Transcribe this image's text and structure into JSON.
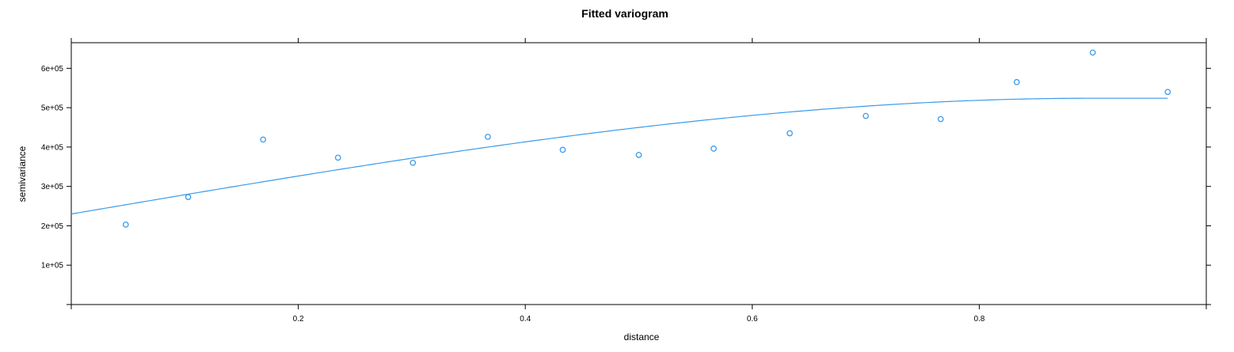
{
  "chart_data": {
    "type": "scatter",
    "title": "Fitted variogram",
    "xlabel": "distance",
    "ylabel": "semivariance",
    "xlim": [
      0.0,
      1.0
    ],
    "ylim": [
      0,
      665000
    ],
    "x_ticks": [
      0.2,
      0.4,
      0.6,
      0.8
    ],
    "x_tick_labels": [
      "0.2",
      "0.4",
      "0.6",
      "0.8"
    ],
    "y_ticks": [
      100000,
      200000,
      300000,
      400000,
      500000,
      600000
    ],
    "y_tick_labels": [
      "1e+05",
      "2e+05",
      "3e+05",
      "4e+05",
      "5e+05",
      "6e+05"
    ],
    "grid": false,
    "colors": {
      "points": "#3a9bec",
      "fit_line": "#3a9bec",
      "axis": "#000000"
    },
    "points": {
      "x": [
        0.048,
        0.103,
        0.169,
        0.235,
        0.301,
        0.367,
        0.433,
        0.5,
        0.566,
        0.633,
        0.7,
        0.766,
        0.833,
        0.9,
        0.966
      ],
      "y": [
        203000,
        273000,
        419000,
        373000,
        360000,
        426000,
        393000,
        380000,
        396000,
        435000,
        479000,
        471000,
        565000,
        640000,
        540000
      ]
    },
    "fitted_model": {
      "type": "spherical",
      "nugget": 230000,
      "partial_sill": 294000,
      "range": 0.9,
      "x_end": 0.966
    }
  }
}
